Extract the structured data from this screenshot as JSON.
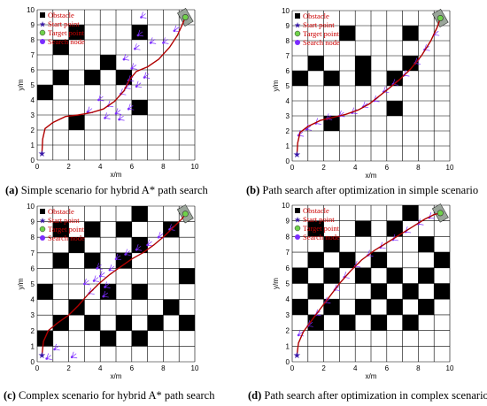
{
  "captions": [
    {
      "tag": "(a)",
      "text": " Simple scenario for hybrid A* path search"
    },
    {
      "tag": "(b)",
      "text": " Path search after optimization in simple scenario"
    },
    {
      "tag": "(c)",
      "text": " Complex scenario for hybrid A* path search"
    },
    {
      "tag": "(d)",
      "text": " Path search after optimization in complex scenario"
    }
  ],
  "legend": {
    "obstacle": "Obstacle",
    "start": "Start point",
    "target": "Target point",
    "search": "Search node"
  },
  "axes": {
    "xlabel": "x/m",
    "ylabel": "y/m",
    "xticks": [
      "0",
      "2",
      "4",
      "6",
      "8",
      "10"
    ],
    "yticks": [
      "0",
      "1",
      "2",
      "3",
      "4",
      "5",
      "6",
      "7",
      "8",
      "9",
      "10"
    ]
  },
  "colors": {
    "grid": "#000000",
    "obstacle": "#000000",
    "path": "#b00000",
    "search": "#7b2cff",
    "start": "#3a1aa8",
    "target_fill": "#6fd14a",
    "target_zone": "#9aa59a",
    "legend_text": "#cc0000"
  },
  "chart_data": [
    {
      "type": "scatter",
      "panel": "a",
      "xlim": [
        0,
        10
      ],
      "ylim": [
        0,
        10
      ],
      "grid": true,
      "legend_position": "top-left",
      "obstacles": [
        [
          2,
          8
        ],
        [
          6,
          8
        ],
        [
          1,
          7
        ],
        [
          4,
          6
        ],
        [
          1,
          5
        ],
        [
          3,
          5
        ],
        [
          5,
          5
        ],
        [
          0,
          4
        ],
        [
          6,
          3
        ],
        [
          2,
          2
        ]
      ],
      "start": [
        0.3,
        0.4
      ],
      "target": [
        9.4,
        9.5
      ],
      "path": [
        [
          0.3,
          0.4
        ],
        [
          0.35,
          1.4
        ],
        [
          0.5,
          2.1
        ],
        [
          1.0,
          2.5
        ],
        [
          1.8,
          2.9
        ],
        [
          2.6,
          3.0
        ],
        [
          3.4,
          3.15
        ],
        [
          4.2,
          3.4
        ],
        [
          4.9,
          3.9
        ],
        [
          5.5,
          4.6
        ],
        [
          5.9,
          5.4
        ],
        [
          6.3,
          5.9
        ],
        [
          7.0,
          6.2
        ],
        [
          7.7,
          6.7
        ],
        [
          8.4,
          7.5
        ],
        [
          8.9,
          8.3
        ],
        [
          9.2,
          9.0
        ],
        [
          9.4,
          9.5
        ]
      ],
      "search_nodes": [
        [
          4.5,
          3.6
        ],
        [
          5.3,
          4.4
        ],
        [
          5.6,
          4.8
        ],
        [
          5.8,
          5.3
        ],
        [
          6.0,
          6.1
        ],
        [
          5.5,
          6.7
        ],
        [
          6.2,
          7.4
        ],
        [
          6.4,
          8.3
        ],
        [
          6.6,
          9.5
        ],
        [
          7.2,
          7.8
        ],
        [
          8.0,
          7.8
        ],
        [
          8.7,
          8.6
        ],
        [
          5.0,
          3.1
        ],
        [
          5.8,
          3.4
        ],
        [
          4.3,
          2.8
        ],
        [
          5.2,
          2.7
        ],
        [
          3.2,
          3.2
        ],
        [
          3.9,
          4.0
        ],
        [
          6.8,
          5.5
        ],
        [
          6.3,
          4.9
        ]
      ]
    },
    {
      "type": "scatter",
      "panel": "b",
      "xlim": [
        0,
        10
      ],
      "ylim": [
        0,
        10
      ],
      "grid": true,
      "legend_position": "top-left",
      "obstacles": [
        [
          3,
          8
        ],
        [
          7,
          8
        ],
        [
          1,
          6
        ],
        [
          4,
          6
        ],
        [
          7,
          6
        ],
        [
          0,
          5
        ],
        [
          2,
          5
        ],
        [
          4,
          5
        ],
        [
          6,
          5
        ],
        [
          6,
          3
        ],
        [
          2,
          2
        ]
      ],
      "start": [
        0.3,
        0.4
      ],
      "target": [
        9.4,
        9.5
      ],
      "path": [
        [
          0.3,
          0.4
        ],
        [
          0.35,
          1.2
        ],
        [
          0.5,
          1.9
        ],
        [
          1.0,
          2.3
        ],
        [
          1.8,
          2.7
        ],
        [
          2.6,
          2.9
        ],
        [
          3.4,
          3.1
        ],
        [
          4.2,
          3.4
        ],
        [
          4.9,
          3.8
        ],
        [
          5.5,
          4.3
        ],
        [
          6.1,
          4.8
        ],
        [
          6.8,
          5.4
        ],
        [
          7.5,
          6.1
        ],
        [
          8.2,
          7.0
        ],
        [
          8.8,
          8.0
        ],
        [
          9.2,
          8.9
        ],
        [
          9.4,
          9.5
        ]
      ],
      "search_nodes": [
        [
          0.4,
          1.7
        ],
        [
          0.9,
          2.1
        ],
        [
          1.5,
          2.5
        ],
        [
          2.2,
          2.8
        ],
        [
          3.0,
          3.0
        ],
        [
          3.8,
          3.2
        ],
        [
          4.5,
          3.6
        ],
        [
          5.2,
          4.0
        ],
        [
          5.8,
          4.6
        ],
        [
          6.4,
          5.1
        ],
        [
          7.1,
          5.7
        ],
        [
          7.8,
          6.5
        ],
        [
          8.4,
          7.4
        ],
        [
          9.0,
          8.4
        ]
      ]
    },
    {
      "type": "scatter",
      "panel": "c",
      "xlim": [
        0,
        10
      ],
      "ylim": [
        0,
        10
      ],
      "grid": true,
      "legend_position": "top-left",
      "obstacles": [
        [
          6,
          9
        ],
        [
          1,
          8
        ],
        [
          3,
          8
        ],
        [
          5,
          8
        ],
        [
          8,
          8
        ],
        [
          2,
          7
        ],
        [
          6,
          7
        ],
        [
          1,
          6
        ],
        [
          3,
          6
        ],
        [
          5,
          6
        ],
        [
          9,
          5
        ],
        [
          0,
          4
        ],
        [
          4,
          4
        ],
        [
          6,
          4
        ],
        [
          2,
          3
        ],
        [
          8,
          3
        ],
        [
          1,
          2
        ],
        [
          3,
          2
        ],
        [
          5,
          2
        ],
        [
          7,
          2
        ],
        [
          9,
          2
        ],
        [
          0,
          1
        ],
        [
          4,
          1
        ],
        [
          6,
          1
        ]
      ],
      "start": [
        0.3,
        0.4
      ],
      "target": [
        9.4,
        9.5
      ],
      "path": [
        [
          0.3,
          0.4
        ],
        [
          0.4,
          1.3
        ],
        [
          0.7,
          2.0
        ],
        [
          1.3,
          2.5
        ],
        [
          2.0,
          3.0
        ],
        [
          2.6,
          3.6
        ],
        [
          3.2,
          4.3
        ],
        [
          3.9,
          5.0
        ],
        [
          4.6,
          5.6
        ],
        [
          5.3,
          6.1
        ],
        [
          6.0,
          6.6
        ],
        [
          6.7,
          7.0
        ],
        [
          7.4,
          7.5
        ],
        [
          8.1,
          8.1
        ],
        [
          8.7,
          8.7
        ],
        [
          9.2,
          9.2
        ],
        [
          9.4,
          9.5
        ]
      ],
      "search_nodes": [
        [
          3.6,
          5.2
        ],
        [
          4.0,
          5.5
        ],
        [
          4.3,
          4.8
        ],
        [
          3.3,
          4.4
        ],
        [
          4.6,
          5.9
        ],
        [
          3.8,
          6.0
        ],
        [
          5.0,
          6.6
        ],
        [
          4.2,
          4.2
        ],
        [
          3.0,
          5.0
        ],
        [
          5.6,
          6.9
        ],
        [
          6.3,
          7.2
        ],
        [
          7.0,
          7.5
        ],
        [
          7.7,
          8.0
        ],
        [
          8.4,
          8.5
        ],
        [
          0.6,
          0.2
        ],
        [
          1.1,
          0.8
        ],
        [
          2.2,
          0.3
        ]
      ]
    },
    {
      "type": "scatter",
      "panel": "d",
      "xlim": [
        0,
        10
      ],
      "ylim": [
        0,
        10
      ],
      "grid": true,
      "legend_position": "top-left",
      "obstacles": [
        [
          7,
          9
        ],
        [
          1,
          8
        ],
        [
          4,
          8
        ],
        [
          6,
          8
        ],
        [
          2,
          7
        ],
        [
          8,
          7
        ],
        [
          1,
          6
        ],
        [
          3,
          6
        ],
        [
          5,
          6
        ],
        [
          9,
          6
        ],
        [
          0,
          5
        ],
        [
          2,
          5
        ],
        [
          4,
          5
        ],
        [
          6,
          5
        ],
        [
          8,
          5
        ],
        [
          1,
          4
        ],
        [
          5,
          4
        ],
        [
          7,
          4
        ],
        [
          9,
          4
        ],
        [
          0,
          3
        ],
        [
          2,
          3
        ],
        [
          4,
          3
        ],
        [
          6,
          3
        ],
        [
          8,
          3
        ],
        [
          1,
          2
        ],
        [
          3,
          2
        ],
        [
          5,
          2
        ],
        [
          7,
          2
        ]
      ],
      "start": [
        0.3,
        0.4
      ],
      "target": [
        9.4,
        9.5
      ],
      "path": [
        [
          0.3,
          0.4
        ],
        [
          0.4,
          1.2
        ],
        [
          0.7,
          1.9
        ],
        [
          1.2,
          2.6
        ],
        [
          1.8,
          3.4
        ],
        [
          2.4,
          4.2
        ],
        [
          3.0,
          5.0
        ],
        [
          3.7,
          5.8
        ],
        [
          4.4,
          6.5
        ],
        [
          5.2,
          7.1
        ],
        [
          6.0,
          7.6
        ],
        [
          6.8,
          8.1
        ],
        [
          7.6,
          8.6
        ],
        [
          8.4,
          9.1
        ],
        [
          9.0,
          9.4
        ],
        [
          9.4,
          9.5
        ]
      ],
      "search_nodes": [
        [
          0.4,
          1.7
        ],
        [
          1.0,
          2.3
        ],
        [
          1.5,
          3.0
        ],
        [
          2.1,
          3.8
        ],
        [
          2.7,
          4.6
        ],
        [
          3.3,
          5.4
        ],
        [
          4.0,
          6.1
        ],
        [
          4.8,
          6.8
        ],
        [
          5.6,
          7.3
        ],
        [
          6.4,
          7.8
        ],
        [
          7.2,
          8.3
        ],
        [
          8.0,
          8.8
        ],
        [
          8.7,
          9.2
        ]
      ]
    }
  ]
}
